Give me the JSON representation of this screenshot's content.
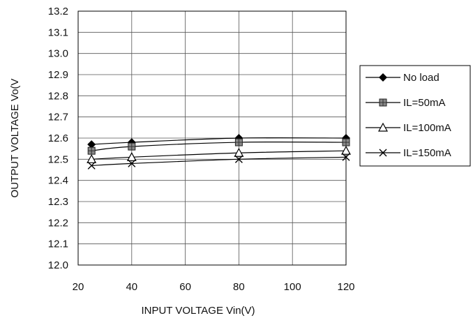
{
  "chart_data": {
    "type": "line",
    "title": "",
    "xlabel": "INPUT VOLTAGE Vin(V)",
    "ylabel": "OUTPUT VOLTAGE Vo(V",
    "xlim": [
      20,
      120
    ],
    "ylim": [
      12.0,
      13.2
    ],
    "xticks": [
      "20",
      "40",
      "60",
      "80",
      "100",
      "120"
    ],
    "yticks": [
      "12.0",
      "12.1",
      "12.2",
      "12.3",
      "12.4",
      "12.5",
      "12.6",
      "12.7",
      "12.8",
      "12.9",
      "13.0",
      "13.1",
      "13.2"
    ],
    "grid": "horizontal",
    "legend_position": "right",
    "x": [
      25,
      40,
      80,
      120
    ],
    "series": [
      {
        "name": "No load",
        "marker": "diamond",
        "values": [
          12.57,
          12.58,
          12.6,
          12.6
        ]
      },
      {
        "name": "IL=50mA",
        "marker": "square",
        "values": [
          12.54,
          12.56,
          12.58,
          12.58
        ]
      },
      {
        "name": "IL=100mA",
        "marker": "triangle",
        "values": [
          12.5,
          12.51,
          12.53,
          12.54
        ]
      },
      {
        "name": "IL=150mA",
        "marker": "x",
        "values": [
          12.47,
          12.48,
          12.5,
          12.51
        ]
      }
    ]
  }
}
